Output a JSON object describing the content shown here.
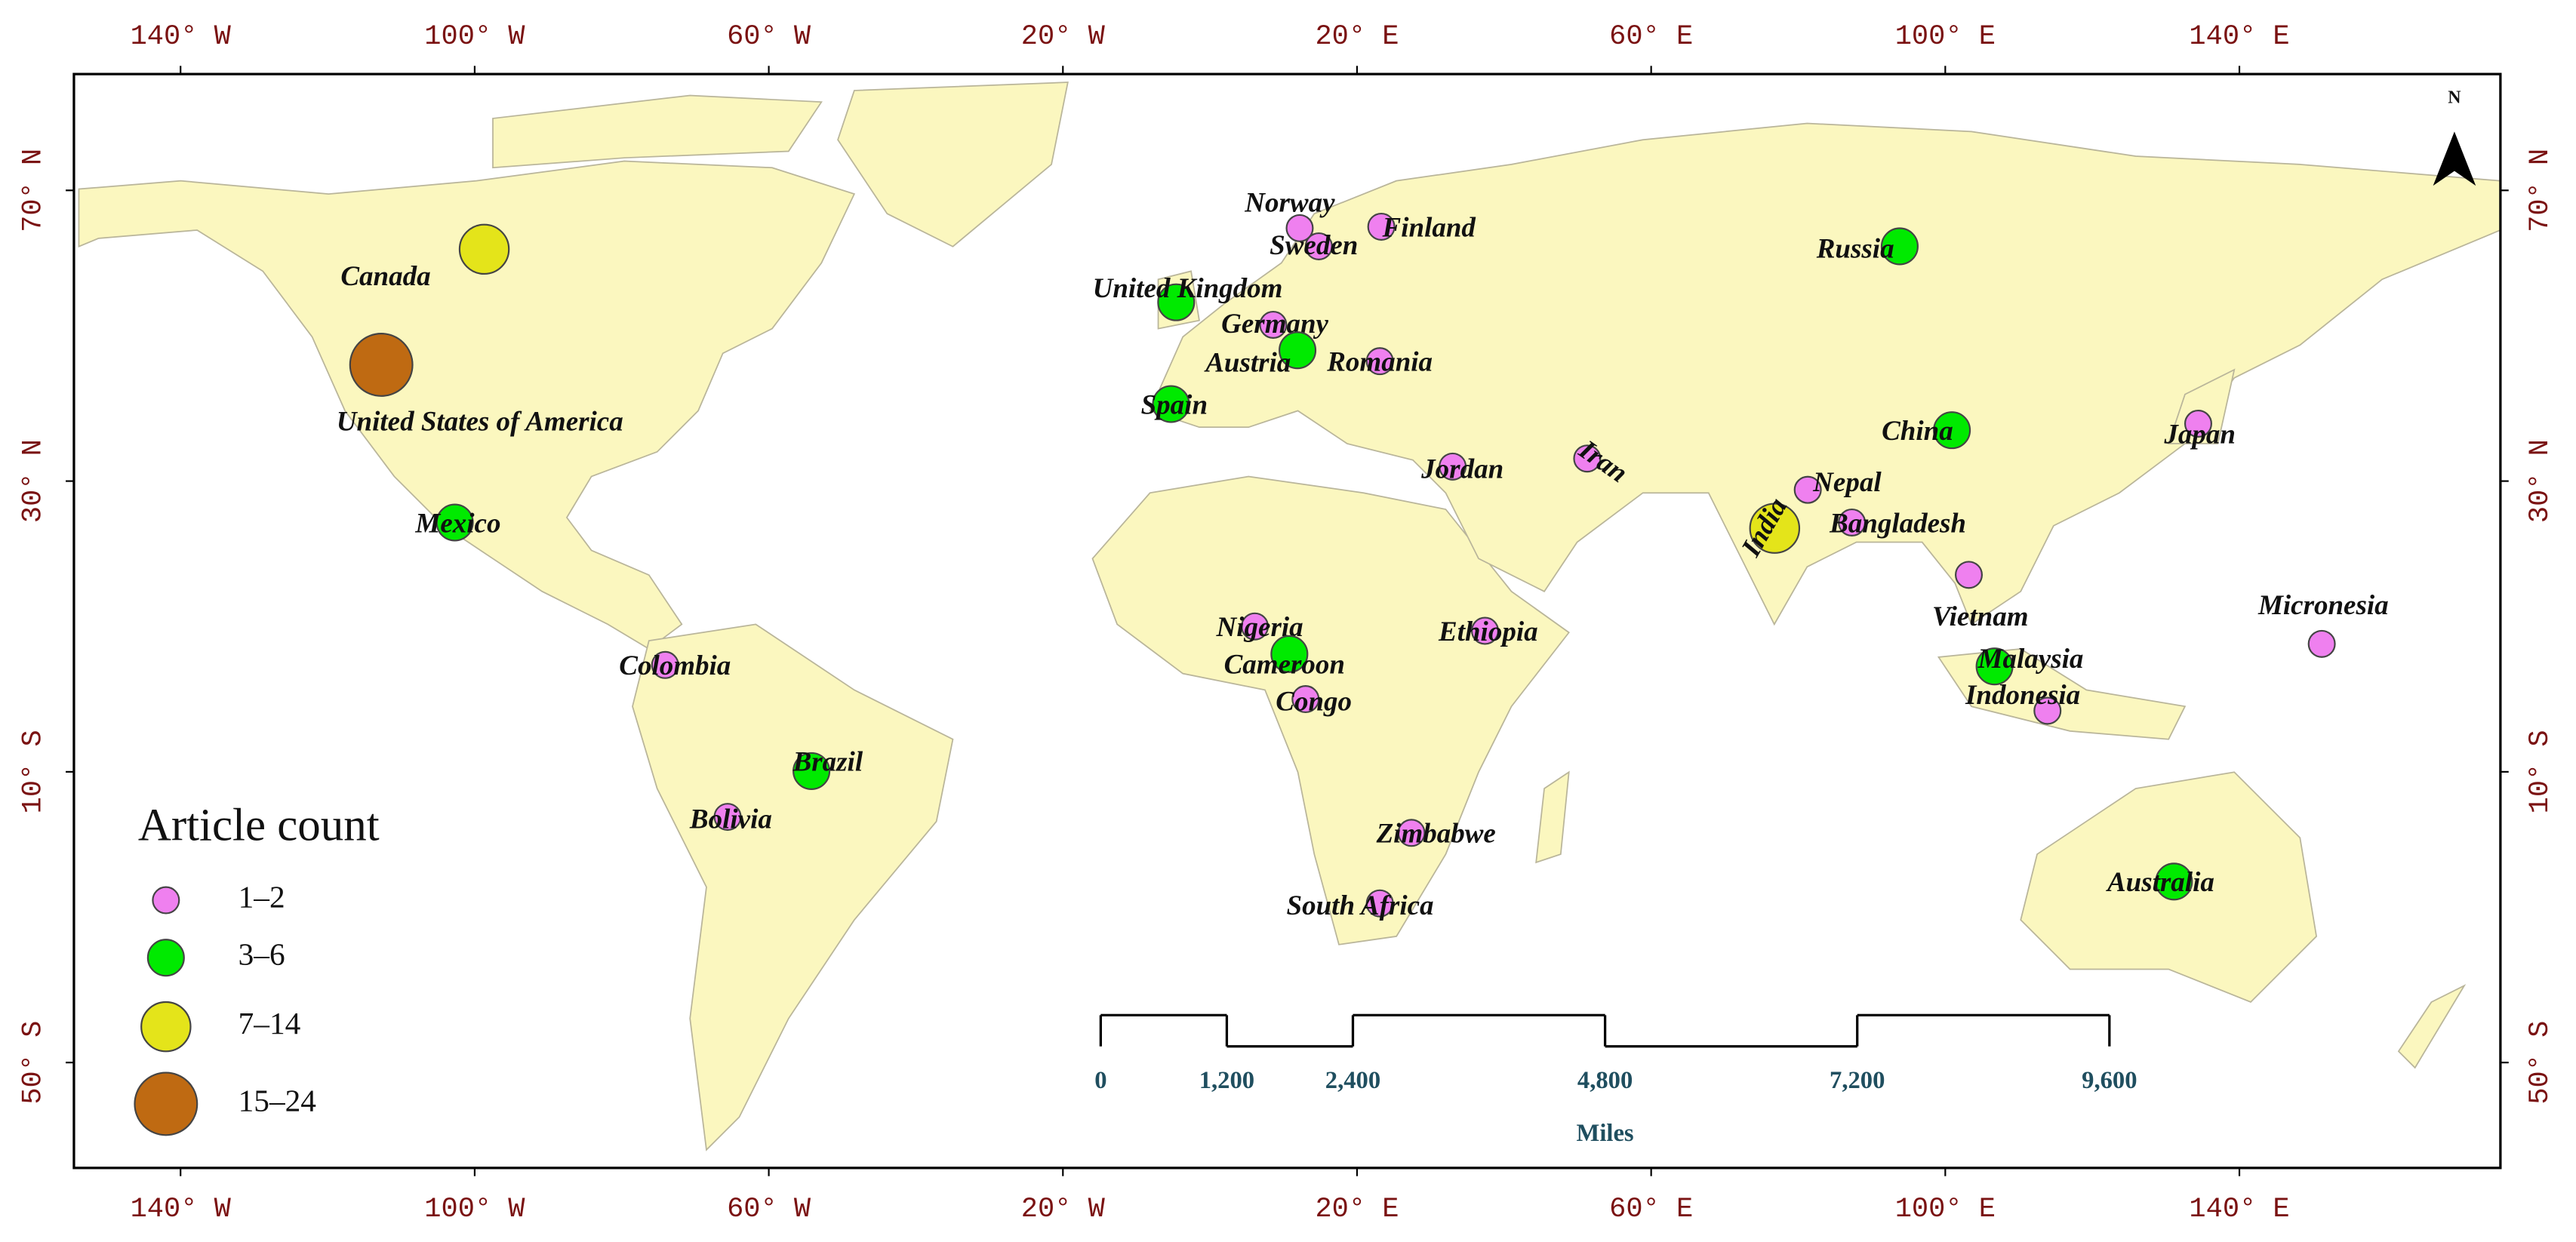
{
  "chart_data": {
    "type": "map",
    "xlim": [
      -154.5,
      175.5
    ],
    "ylim": [
      -64.5,
      86
    ],
    "xticks": [
      {
        "value": -140,
        "label": "140° W"
      },
      {
        "value": -100,
        "label": "100° W"
      },
      {
        "value": -60,
        "label": "60° W"
      },
      {
        "value": -20,
        "label": "20° W"
      },
      {
        "value": 20,
        "label": "20° E"
      },
      {
        "value": 60,
        "label": "60° E"
      },
      {
        "value": 100,
        "label": "100° E"
      },
      {
        "value": 140,
        "label": "140° E"
      }
    ],
    "yticks": [
      {
        "value": 70,
        "label": "70° N"
      },
      {
        "value": 30,
        "label": "30° N"
      },
      {
        "value": -10,
        "label": "10° S"
      },
      {
        "value": -50,
        "label": "50° S"
      }
    ],
    "legend": {
      "title": "Article count",
      "position": "lower left",
      "entries": [
        {
          "label": "1–2",
          "color": "#ef80ef"
        },
        {
          "label": "3–6",
          "color": "#00ea00"
        },
        {
          "label": "7–14",
          "color": "#e4e41a"
        },
        {
          "label": "15–24",
          "color": "#bf6a12"
        }
      ]
    },
    "countries": [
      {
        "name": "United States of America",
        "lon": -112.7,
        "lat": 46.0,
        "count": "15–24"
      },
      {
        "name": "Canada",
        "lon": -98.7,
        "lat": 61.9,
        "count": "7–14"
      },
      {
        "name": "Mexico",
        "lon": -102.7,
        "lat": 24.3,
        "count": "3–6"
      },
      {
        "name": "Colombia",
        "lon": -74.1,
        "lat": 4.7,
        "count": "1–2"
      },
      {
        "name": "Brazil",
        "lon": -54.2,
        "lat": -9.9,
        "count": "3–6"
      },
      {
        "name": "Bolivia",
        "lon": -65.6,
        "lat": -16.2,
        "count": "1–2"
      },
      {
        "name": "Norway",
        "lon": 12.2,
        "lat": 64.8,
        "count": "1–2"
      },
      {
        "name": "Sweden",
        "lon": 14.8,
        "lat": 62.3,
        "count": "1–2"
      },
      {
        "name": "Finland",
        "lon": 23.3,
        "lat": 65.0,
        "count": "1–2"
      },
      {
        "name": "United Kingdom",
        "lon": -4.6,
        "lat": 54.6,
        "count": "3–6"
      },
      {
        "name": "Germany",
        "lon": 8.6,
        "lat": 51.5,
        "count": "1–2"
      },
      {
        "name": "Austria",
        "lon": 11.9,
        "lat": 48.0,
        "count": "3–6"
      },
      {
        "name": "Romania",
        "lon": 23.1,
        "lat": 46.5,
        "count": "1–2"
      },
      {
        "name": "Spain",
        "lon": -5.3,
        "lat": 40.6,
        "count": "3–6"
      },
      {
        "name": "Jordan",
        "lon": 33.0,
        "lat": 32.0,
        "count": "1–2"
      },
      {
        "name": "Iran",
        "lon": 51.3,
        "lat": 33.1,
        "count": "1–2"
      },
      {
        "name": "Nigeria",
        "lon": 6.1,
        "lat": 10.0,
        "count": "1–2"
      },
      {
        "name": "Cameroon",
        "lon": 10.8,
        "lat": 6.2,
        "count": "3–6"
      },
      {
        "name": "Congo",
        "lon": 13.0,
        "lat": 0.0,
        "count": "1–2"
      },
      {
        "name": "Ethiopia",
        "lon": 37.4,
        "lat": 9.4,
        "count": "1–2"
      },
      {
        "name": "Zimbabwe",
        "lon": 27.4,
        "lat": -18.4,
        "count": "1–2"
      },
      {
        "name": "South Africa",
        "lon": 23.1,
        "lat": -28.1,
        "count": "1–2"
      },
      {
        "name": "Russia",
        "lon": 93.8,
        "lat": 62.3,
        "count": "3–6"
      },
      {
        "name": "China",
        "lon": 100.9,
        "lat": 37.0,
        "count": "3–6"
      },
      {
        "name": "Japan",
        "lon": 134.4,
        "lat": 37.9,
        "count": "1–2"
      },
      {
        "name": "Nepal",
        "lon": 81.3,
        "lat": 28.8,
        "count": "1–2"
      },
      {
        "name": "India",
        "lon": 76.8,
        "lat": 23.5,
        "count": "7–14"
      },
      {
        "name": "Bangladesh",
        "lon": 87.3,
        "lat": 24.3,
        "count": "1–2"
      },
      {
        "name": "Vietnam",
        "lon": 103.2,
        "lat": 17.1,
        "count": "1–2"
      },
      {
        "name": "Malaysia",
        "lon": 106.7,
        "lat": 4.5,
        "count": "3–6"
      },
      {
        "name": "Indonesia",
        "lon": 113.9,
        "lat": -1.6,
        "count": "1–2"
      },
      {
        "name": "Micronesia",
        "lon": 151.2,
        "lat": 7.6,
        "count": "1–2"
      },
      {
        "name": "Australia",
        "lon": 131.1,
        "lat": -25.1,
        "count": "3–6"
      }
    ],
    "scale_bar": {
      "unit": "Miles",
      "ticks": [
        0,
        {
          "value": 1200,
          "label": "1,200"
        },
        {
          "value": 2400,
          "label": "2,400"
        },
        {
          "value": 4800,
          "label": "4,800"
        },
        {
          "value": 7200,
          "label": "7,200"
        },
        {
          "value": 9600,
          "label": "9,600"
        }
      ]
    },
    "north_label": "N"
  }
}
